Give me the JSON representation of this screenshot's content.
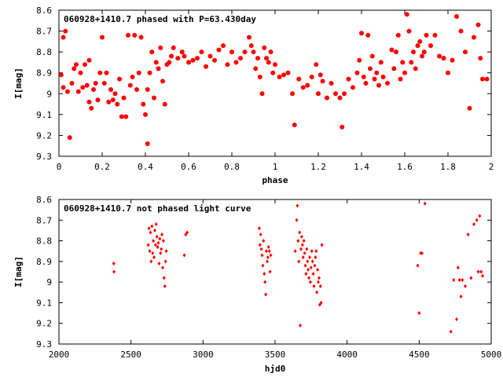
{
  "chart_data": [
    {
      "type": "scatter",
      "title": "060928+1410.7 phased with P=63.430day",
      "xlabel": "phase",
      "ylabel": "I[mag]",
      "xlim": [
        0,
        2
      ],
      "ylim": [
        9.3,
        8.6
      ],
      "y_inverted": true,
      "x_ticks": [
        0,
        0.2,
        0.4,
        0.6,
        0.8,
        1,
        1.2,
        1.4,
        1.6,
        1.8,
        2
      ],
      "x_tick_labels": [
        "0",
        "0.2",
        "0.4",
        "0.6",
        "0.8",
        "1",
        "1.2",
        "1.4",
        "1.6",
        "1.8",
        "2"
      ],
      "y_ticks": [
        8.6,
        8.7,
        8.8,
        8.9,
        9.0,
        9.1,
        9.2,
        9.3
      ],
      "y_tick_labels": [
        "8.6",
        "8.7",
        "8.8",
        "8.9",
        "9",
        "9.1",
        "9.2",
        "9.3"
      ],
      "grid": false,
      "legend": "none",
      "marker_color": "#ff0000",
      "marker": "filled-circle",
      "series": [
        {
          "x": [
            0.01,
            0.02,
            0.02,
            0.03,
            0.04,
            0.05,
            0.06,
            0.07,
            0.08,
            0.09,
            0.1,
            0.11,
            0.12,
            0.13,
            0.14,
            0.14,
            0.15,
            0.16,
            0.17,
            0.18,
            0.19,
            0.2,
            0.21,
            0.22,
            0.23,
            0.24,
            0.25,
            0.26,
            0.27,
            0.28,
            0.29,
            0.3,
            0.31,
            0.32,
            0.33,
            0.34,
            0.35,
            0.36,
            0.37,
            0.38,
            0.39,
            0.4,
            0.41,
            0.41,
            0.42,
            0.43,
            0.44,
            0.45,
            0.46,
            0.47,
            0.48,
            0.49,
            0.5,
            0.51,
            0.52,
            0.53,
            0.55,
            0.57,
            0.58,
            0.6,
            0.62,
            0.64,
            0.66,
            0.68,
            0.7,
            0.72,
            0.74,
            0.76,
            0.78,
            0.8,
            0.82,
            0.84,
            0.86,
            0.88,
            0.89,
            0.9,
            0.91,
            0.92,
            0.93,
            0.94,
            0.95,
            0.96,
            0.97,
            0.98,
            0.99,
            1.0,
            1.02,
            1.04,
            1.06,
            1.08,
            1.09,
            1.11,
            1.13,
            1.15,
            1.17,
            1.19,
            1.2,
            1.21,
            1.22,
            1.24,
            1.26,
            1.28,
            1.3,
            1.31,
            1.32,
            1.34,
            1.36,
            1.38,
            1.39,
            1.4,
            1.41,
            1.42,
            1.43,
            1.44,
            1.45,
            1.46,
            1.47,
            1.48,
            1.49,
            1.5,
            1.52,
            1.54,
            1.55,
            1.56,
            1.57,
            1.58,
            1.59,
            1.6,
            1.61,
            1.62,
            1.63,
            1.64,
            1.65,
            1.66,
            1.67,
            1.68,
            1.69,
            1.7,
            1.72,
            1.74,
            1.76,
            1.78,
            1.8,
            1.82,
            1.84,
            1.86,
            1.88,
            1.9,
            1.92,
            1.94,
            1.95,
            1.96,
            1.98
          ],
          "y": [
            8.91,
            8.73,
            8.97,
            8.7,
            8.99,
            9.21,
            8.95,
            8.88,
            8.86,
            8.99,
            8.9,
            8.97,
            8.86,
            8.96,
            9.04,
            8.84,
            9.07,
            8.98,
            8.95,
            9.03,
            8.9,
            8.73,
            8.95,
            8.9,
            9.04,
            8.98,
            9.03,
            9.0,
            9.05,
            8.93,
            9.11,
            9.02,
            9.11,
            8.72,
            8.96,
            8.92,
            8.72,
            8.98,
            8.9,
            8.73,
            9.05,
            9.1,
            8.98,
            9.24,
            8.9,
            8.8,
            9.02,
            8.85,
            8.88,
            8.78,
            8.94,
            9.05,
            8.86,
            8.85,
            8.82,
            8.78,
            8.83,
            8.8,
            8.82,
            8.85,
            8.84,
            8.83,
            8.8,
            8.87,
            8.82,
            8.84,
            8.79,
            8.77,
            8.86,
            8.8,
            8.85,
            8.83,
            8.8,
            8.73,
            8.77,
            8.8,
            8.88,
            8.83,
            8.92,
            9.0,
            8.78,
            8.83,
            8.85,
            8.8,
            8.9,
            8.86,
            8.92,
            8.91,
            8.9,
            9.0,
            9.15,
            8.93,
            8.97,
            8.96,
            8.92,
            8.86,
            9.0,
            8.91,
            8.94,
            9.02,
            8.95,
            9.0,
            9.02,
            9.16,
            9.0,
            8.93,
            8.97,
            8.9,
            8.84,
            8.71,
            8.92,
            8.95,
            8.72,
            8.88,
            8.82,
            8.93,
            8.9,
            8.96,
            8.85,
            8.92,
            8.95,
            8.79,
            8.88,
            8.8,
            8.72,
            8.93,
            8.85,
            8.9,
            8.62,
            8.7,
            8.85,
            8.8,
            8.88,
            8.77,
            8.75,
            8.82,
            8.8,
            8.72,
            8.77,
            8.72,
            8.82,
            8.83,
            8.9,
            8.84,
            8.63,
            8.7,
            8.8,
            9.07,
            8.73,
            8.67,
            8.83,
            8.93,
            8.93
          ]
        }
      ]
    },
    {
      "type": "scatter",
      "title": "060928+1410.7 not phased light curve",
      "xlabel": "hjd0",
      "ylabel": "I[mag]",
      "xlim": [
        2000,
        5000
      ],
      "ylim": [
        9.3,
        8.6
      ],
      "y_inverted": true,
      "x_ticks": [
        2000,
        2500,
        3000,
        3500,
        4000,
        4500,
        5000
      ],
      "x_tick_labels": [
        "2000",
        "2500",
        "3000",
        "3500",
        "4000",
        "4500",
        "5000"
      ],
      "y_ticks": [
        8.6,
        8.7,
        8.8,
        8.9,
        9.0,
        9.1,
        9.2,
        9.3
      ],
      "y_tick_labels": [
        "8.6",
        "8.7",
        "8.8",
        "8.9",
        "9",
        "9.1",
        "9.2",
        "9.3"
      ],
      "grid": false,
      "legend": "none",
      "marker_color": "#ff0000",
      "marker": "small-diamond",
      "series": [
        {
          "x": [
            2380,
            2382,
            2620,
            2625,
            2630,
            2635,
            2640,
            2645,
            2650,
            2655,
            2660,
            2665,
            2670,
            2675,
            2680,
            2685,
            2690,
            2695,
            2700,
            2705,
            2710,
            2715,
            2720,
            2725,
            2730,
            2735,
            2740,
            2745,
            2870,
            2880,
            2890,
            3390,
            3395,
            3400,
            3405,
            3410,
            3415,
            3420,
            3425,
            3430,
            3435,
            3440,
            3445,
            3450,
            3455,
            3460,
            3465,
            3470,
            3640,
            3650,
            3655,
            3660,
            3665,
            3670,
            3675,
            3680,
            3685,
            3690,
            3695,
            3700,
            3705,
            3710,
            3715,
            3720,
            3725,
            3730,
            3735,
            3740,
            3745,
            3750,
            3755,
            3760,
            3765,
            3770,
            3775,
            3780,
            3785,
            3790,
            3795,
            3800,
            3805,
            3810,
            3815,
            3820,
            3825,
            4490,
            4500,
            4510,
            4520,
            4540,
            4720,
            4740,
            4760,
            4770,
            4780,
            4790,
            4800,
            4820,
            4840,
            4860,
            4880,
            4900,
            4910,
            4920,
            4930,
            4940
          ],
          "y": [
            8.91,
            8.95,
            8.82,
            8.74,
            8.85,
            8.76,
            8.9,
            8.73,
            8.86,
            8.8,
            8.88,
            8.75,
            8.82,
            8.72,
            8.78,
            8.83,
            8.81,
            8.91,
            8.79,
            8.86,
            8.84,
            8.77,
            8.93,
            8.8,
            8.98,
            9.02,
            8.9,
            8.85,
            8.87,
            8.77,
            8.76,
            8.74,
            8.82,
            8.77,
            8.84,
            8.87,
            8.92,
            8.8,
            8.96,
            9.0,
            9.06,
            8.85,
            8.9,
            8.88,
            8.83,
            8.85,
            8.95,
            8.87,
            8.85,
            8.7,
            8.63,
            8.8,
            8.9,
            8.76,
            9.21,
            8.84,
            8.78,
            8.82,
            8.88,
            8.8,
            8.86,
            8.92,
            8.96,
            8.84,
            8.9,
            8.94,
            8.98,
            8.88,
            9.0,
            8.93,
            8.85,
            8.9,
            8.96,
            9.02,
            8.92,
            8.88,
            8.85,
            9.05,
            8.94,
            9.0,
            8.98,
            9.11,
            9.02,
            9.1,
            8.82,
            8.92,
            9.15,
            8.86,
            8.86,
            8.62,
            9.24,
            8.99,
            9.18,
            8.93,
            8.99,
            9.07,
            8.99,
            9.02,
            8.77,
            8.98,
            8.72,
            8.7,
            8.95,
            8.68,
            8.95,
            8.97
          ]
        }
      ]
    }
  ]
}
